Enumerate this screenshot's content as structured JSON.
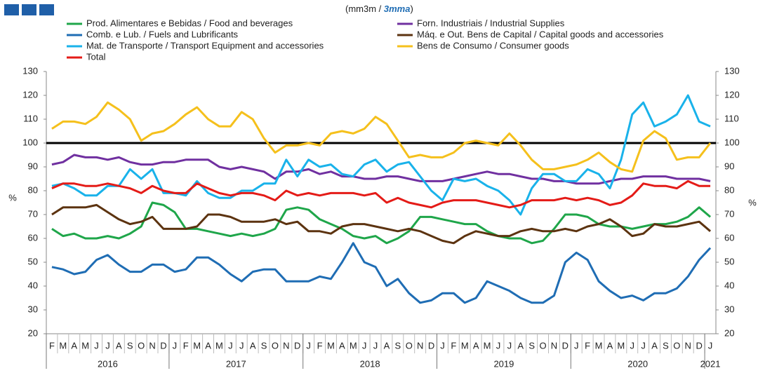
{
  "chart_data": {
    "type": "line",
    "subtitle_parts": [
      "(mm3m / ",
      "3mma",
      ")"
    ],
    "y_label": "%",
    "categories": [
      "F",
      "M",
      "A",
      "M",
      "J",
      "J",
      "A",
      "S",
      "O",
      "N",
      "D",
      "J",
      "F",
      "M",
      "A",
      "M",
      "J",
      "J",
      "A",
      "S",
      "O",
      "N",
      "D",
      "J",
      "F",
      "M",
      "A",
      "M",
      "J",
      "J",
      "A",
      "S",
      "O",
      "N",
      "D",
      "J",
      "F",
      "M",
      "A",
      "M",
      "J",
      "J",
      "A",
      "S",
      "O",
      "N",
      "D",
      "J",
      "F",
      "M",
      "A",
      "M",
      "J",
      "J",
      "A",
      "S",
      "O",
      "N",
      "D",
      "J"
    ],
    "years": [
      "2016",
      "2017",
      "2018",
      "2019",
      "2020",
      "2021"
    ],
    "ylim": [
      20,
      130
    ],
    "yticks": [
      20,
      30,
      40,
      50,
      60,
      70,
      80,
      90,
      100,
      110,
      120,
      130
    ],
    "reference_line": 100,
    "series": [
      {
        "name": "Prod. Alimentares e Bebidas / Food and beverages",
        "color": "#1fa64a",
        "values": [
          64,
          61,
          62,
          60,
          60,
          61,
          60,
          62,
          65,
          75,
          74,
          71,
          64,
          64,
          63,
          62,
          61,
          62,
          61,
          62,
          64,
          72,
          73,
          72,
          68,
          66,
          64,
          61,
          60,
          61,
          58,
          60,
          63,
          69,
          69,
          68,
          67,
          66,
          66,
          63,
          61,
          60,
          60,
          58,
          59,
          64,
          70,
          70,
          69,
          66,
          65,
          65,
          64,
          65,
          66,
          66,
          67,
          69,
          73,
          69
        ]
      },
      {
        "name": "Forn. Industriais / Industrial Supplies",
        "color": "#7030a0",
        "values": [
          91,
          92,
          95,
          94,
          94,
          93,
          94,
          92,
          91,
          91,
          92,
          92,
          93,
          93,
          93,
          90,
          89,
          90,
          89,
          88,
          85,
          88,
          88,
          89,
          87,
          88,
          86,
          86,
          85,
          85,
          86,
          86,
          85,
          84,
          84,
          84,
          85,
          86,
          87,
          88,
          87,
          87,
          86,
          85,
          85,
          84,
          84,
          83,
          83,
          83,
          84,
          85,
          85,
          86,
          86,
          86,
          85,
          85,
          85,
          84
        ]
      },
      {
        "name": "Comb. e Lub. /  Fuels and Lubrificants",
        "color": "#1f6db4",
        "values": [
          48,
          47,
          45,
          46,
          51,
          53,
          49,
          46,
          46,
          49,
          49,
          46,
          47,
          52,
          52,
          49,
          45,
          42,
          46,
          47,
          47,
          42,
          42,
          42,
          44,
          43,
          50,
          58,
          50,
          48,
          40,
          43,
          37,
          33,
          34,
          37,
          37,
          33,
          35,
          42,
          40,
          38,
          35,
          33,
          33,
          36,
          50,
          54,
          51,
          42,
          38,
          35,
          36,
          34,
          37,
          37,
          39,
          44,
          51,
          56
        ]
      },
      {
        "name": "Máq. e Out. Bens de Capital / Capital goods and accessories",
        "color": "#5c3310",
        "values": [
          70,
          73,
          73,
          73,
          74,
          71,
          68,
          66,
          67,
          69,
          64,
          64,
          64,
          65,
          70,
          70,
          69,
          67,
          67,
          67,
          68,
          66,
          67,
          63,
          63,
          62,
          65,
          66,
          66,
          65,
          64,
          63,
          64,
          63,
          61,
          59,
          58,
          61,
          63,
          62,
          61,
          61,
          63,
          64,
          63,
          63,
          64,
          63,
          65,
          66,
          68,
          65,
          61,
          62,
          66,
          65,
          65,
          66,
          67,
          63
        ]
      },
      {
        "name": "Mat. de Transporte / Transport Equipment and accessories",
        "color": "#19b2ea",
        "values": [
          82,
          83,
          81,
          78,
          78,
          82,
          82,
          89,
          85,
          89,
          79,
          79,
          78,
          84,
          79,
          77,
          77,
          80,
          80,
          83,
          83,
          93,
          86,
          93,
          90,
          91,
          87,
          86,
          91,
          93,
          88,
          91,
          92,
          86,
          80,
          76,
          85,
          84,
          85,
          82,
          80,
          76,
          70,
          81,
          87,
          87,
          84,
          84,
          89,
          87,
          81,
          93,
          112,
          117,
          107,
          109,
          112,
          120,
          109,
          107
        ]
      },
      {
        "name": "Bens de Consumo / Consumer goods",
        "color": "#f5c01c",
        "values": [
          106,
          109,
          109,
          108,
          111,
          117,
          114,
          110,
          101,
          104,
          105,
          108,
          112,
          115,
          110,
          107,
          107,
          113,
          110,
          102,
          96,
          99,
          99,
          100,
          99,
          104,
          105,
          104,
          106,
          111,
          108,
          101,
          94,
          95,
          94,
          94,
          96,
          100,
          101,
          100,
          99,
          104,
          99,
          93,
          89,
          89,
          90,
          91,
          93,
          96,
          92,
          89,
          88,
          101,
          105,
          102,
          93,
          94,
          94,
          100
        ]
      },
      {
        "name": "Total",
        "color": "#e41b17",
        "values": [
          81,
          83,
          83,
          82,
          82,
          83,
          82,
          81,
          79,
          82,
          80,
          79,
          79,
          83,
          81,
          79,
          78,
          79,
          79,
          78,
          76,
          80,
          78,
          79,
          78,
          79,
          79,
          79,
          78,
          79,
          75,
          77,
          75,
          74,
          73,
          75,
          76,
          76,
          76,
          75,
          74,
          73,
          74,
          76,
          76,
          76,
          77,
          76,
          77,
          76,
          74,
          75,
          78,
          83,
          82,
          82,
          81,
          84,
          82,
          82
        ]
      }
    ]
  }
}
